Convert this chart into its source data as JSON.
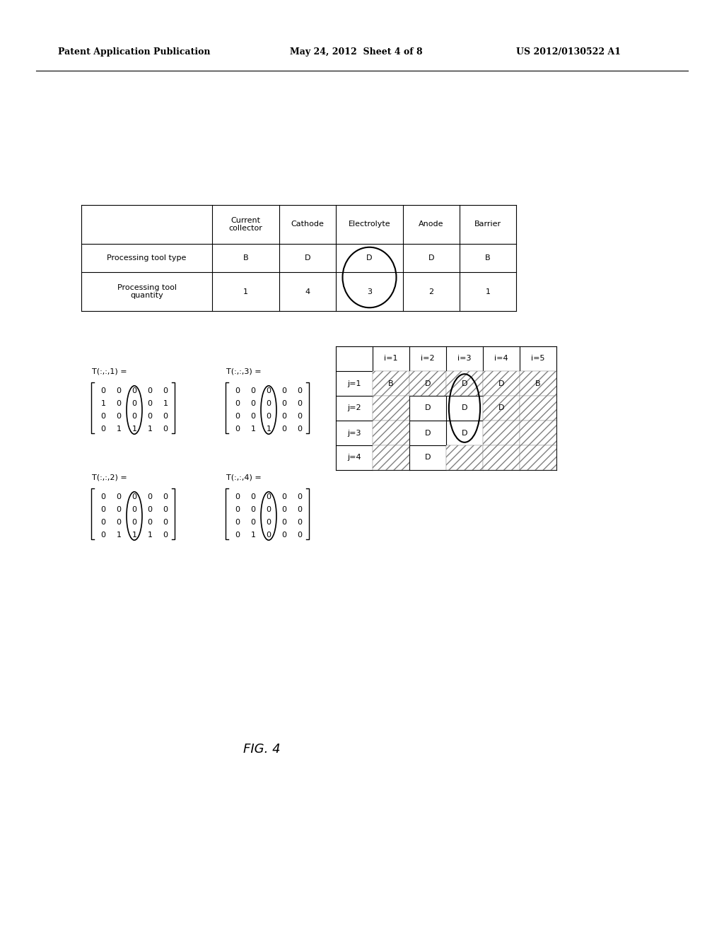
{
  "header_text_left": "Patent Application Publication",
  "header_text_mid": "May 24, 2012  Sheet 4 of 8",
  "header_text_right": "US 2012/0130522 A1",
  "top_table": {
    "col_headers": [
      "",
      "Current\ncollector",
      "Cathode",
      "Electrolyte",
      "Anode",
      "Barrier"
    ],
    "rows": [
      [
        "Processing tool type",
        "B",
        "D",
        "D",
        "D",
        "B"
      ],
      [
        "Processing tool\nquantity",
        "1",
        "4",
        "3",
        "2",
        "1"
      ]
    ]
  },
  "bottom_right_table": {
    "col_headers": [
      "",
      "i=1",
      "i=2",
      "i=3",
      "i=4",
      "i=5"
    ],
    "rows": [
      [
        "j=1",
        "B",
        "D",
        "D",
        "D",
        "B"
      ],
      [
        "j=2",
        "",
        "D",
        "D",
        "D",
        ""
      ],
      [
        "j=3",
        "",
        "D",
        "D",
        "",
        ""
      ],
      [
        "j=4",
        "",
        "D",
        "",
        "",
        ""
      ]
    ]
  },
  "matrices": [
    {
      "label": "T(:,:,1) =",
      "data": [
        [
          0,
          0,
          0,
          0,
          0
        ],
        [
          1,
          0,
          0,
          0,
          1
        ],
        [
          0,
          0,
          0,
          0,
          0
        ],
        [
          0,
          1,
          1,
          1,
          0
        ]
      ]
    },
    {
      "label": "T(:,:,2) =",
      "data": [
        [
          0,
          0,
          0,
          0,
          0
        ],
        [
          0,
          0,
          0,
          0,
          0
        ],
        [
          0,
          0,
          0,
          0,
          0
        ],
        [
          0,
          1,
          1,
          1,
          0
        ]
      ]
    },
    {
      "label": "T(:,:,3) =",
      "data": [
        [
          0,
          0,
          0,
          0,
          0
        ],
        [
          0,
          0,
          0,
          0,
          0
        ],
        [
          0,
          0,
          0,
          0,
          0
        ],
        [
          0,
          1,
          1,
          0,
          0
        ]
      ]
    },
    {
      "label": "T(:,:,4) =",
      "data": [
        [
          0,
          0,
          0,
          0,
          0
        ],
        [
          0,
          0,
          0,
          0,
          0
        ],
        [
          0,
          0,
          0,
          0,
          0
        ],
        [
          0,
          1,
          0,
          0,
          0
        ]
      ]
    }
  ],
  "fig_label": "FIG. 4",
  "background_color": "#ffffff"
}
